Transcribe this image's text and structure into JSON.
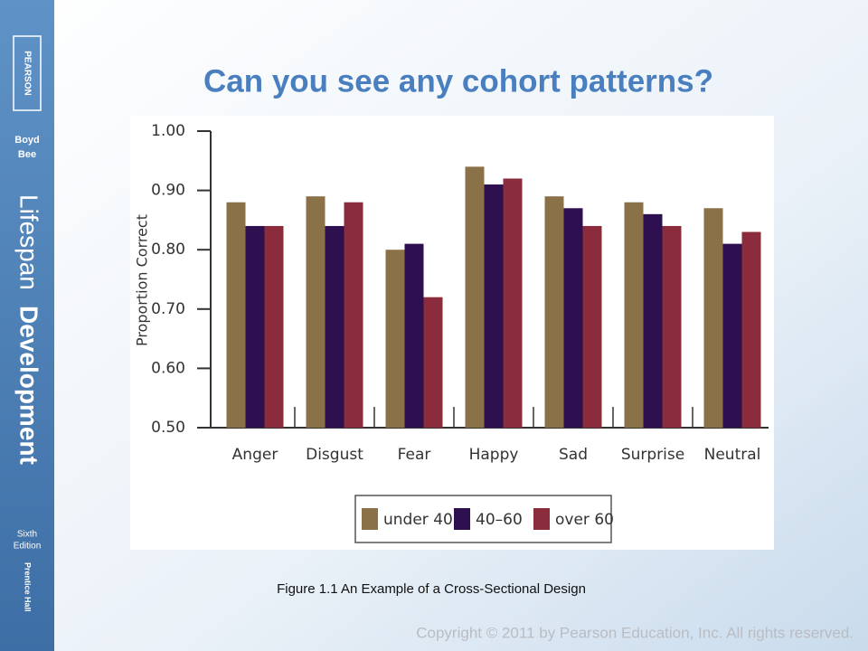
{
  "slide": {
    "title": "Can you see any cohort patterns?",
    "caption": "Figure 1.1 An Example of a Cross-Sectional Design",
    "copyright": "Copyright © 2011 by Pearson Education, Inc. All rights reserved."
  },
  "sidebar": {
    "publisher": "PEARSON",
    "authors": [
      "Boyd",
      "Bee"
    ],
    "book_title": [
      "Lifespan",
      "Development"
    ],
    "edition": [
      "Sixth",
      "Edition"
    ],
    "imprint": "Prentice Hall"
  },
  "chart_data": {
    "type": "bar",
    "y_label": "Proportion Correct",
    "categories": [
      "Anger",
      "Disgust",
      "Fear",
      "Happy",
      "Sad",
      "Surprise",
      "Neutral"
    ],
    "series": [
      {
        "name": "under 40",
        "color": "#8b7148",
        "values": [
          0.88,
          0.89,
          0.8,
          0.94,
          0.89,
          0.88,
          0.87
        ]
      },
      {
        "name": "40–60",
        "color": "#2e1050",
        "values": [
          0.84,
          0.84,
          0.81,
          0.91,
          0.87,
          0.86,
          0.81
        ]
      },
      {
        "name": "over 60",
        "color": "#8a2c3b",
        "values": [
          0.84,
          0.88,
          0.72,
          0.92,
          0.84,
          0.84,
          0.83
        ]
      }
    ],
    "ylim": [
      0.5,
      1.0
    ],
    "yticks": [
      {
        "value": 0.5,
        "label": "0.50"
      },
      {
        "value": 0.6,
        "label": "0.60"
      },
      {
        "value": 0.7,
        "label": "0.70"
      },
      {
        "value": 0.8,
        "label": "0.80"
      },
      {
        "value": 0.9,
        "label": "0.90"
      },
      {
        "value": 1.0,
        "label": "1.00"
      }
    ],
    "grid": false
  }
}
